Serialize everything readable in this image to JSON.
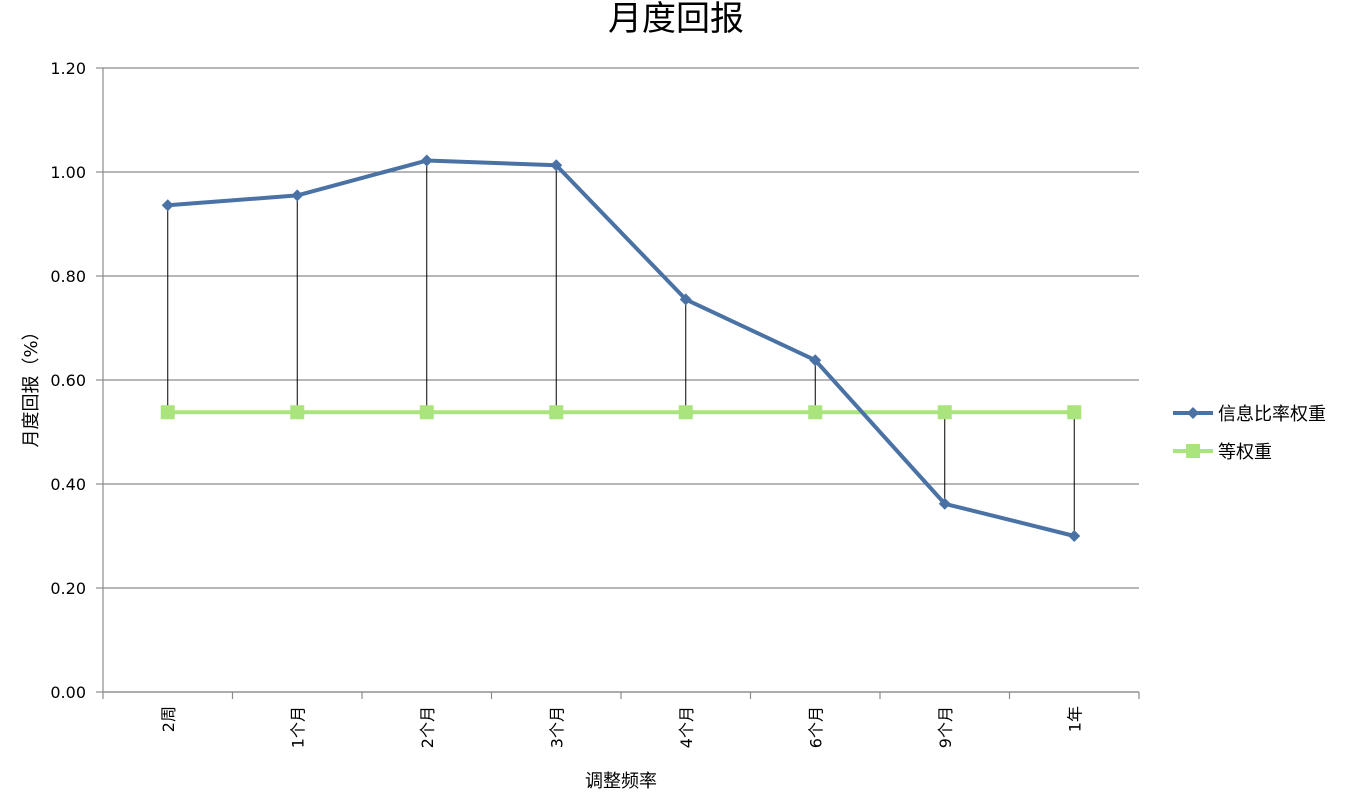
{
  "chart_data": {
    "type": "line",
    "title": "月度回报",
    "xlabel": "调整频率",
    "ylabel": "月度回报（%）",
    "categories": [
      "2周",
      "1个月",
      "2个月",
      "3个月",
      "4个月",
      "6个月",
      "9个月",
      "1年"
    ],
    "ylim": [
      0,
      1.2
    ],
    "yticks": [
      "0.00",
      "0.20",
      "0.40",
      "0.60",
      "0.80",
      "1.00",
      "1.20"
    ],
    "grid": true,
    "legend_position": "right",
    "drop_lines": true,
    "series": [
      {
        "name": "信息比率权重",
        "values": [
          0.936,
          0.955,
          1.022,
          1.013,
          0.755,
          0.638,
          0.362,
          0.3
        ],
        "color": "#4A72A4",
        "marker": "diamond"
      },
      {
        "name": "等权重",
        "values": [
          0.538,
          0.538,
          0.538,
          0.538,
          0.538,
          0.538,
          0.538,
          0.538
        ],
        "color": "#A9E47D",
        "marker": "square"
      }
    ],
    "colors": {
      "grid": "#8C8C8C",
      "axis": "#8C8C8C",
      "drop_line": "#000000"
    }
  }
}
